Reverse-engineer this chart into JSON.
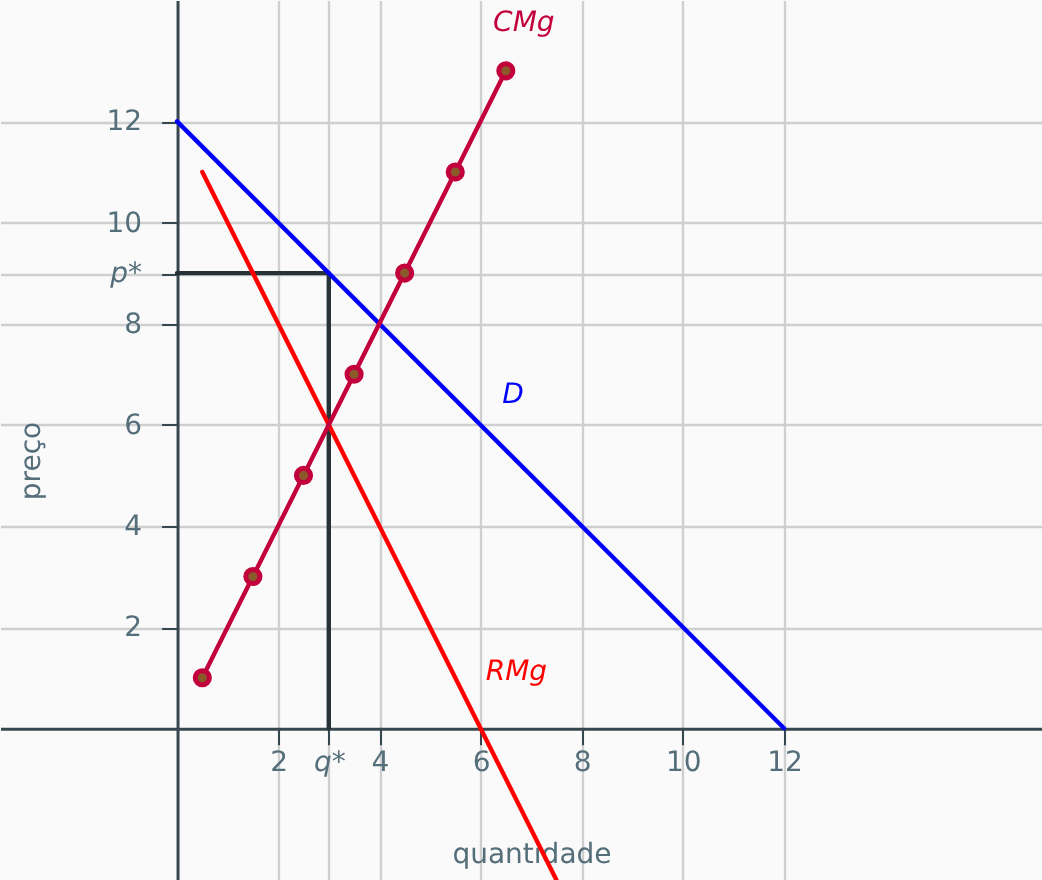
{
  "chart_data": {
    "type": "line",
    "xlabel": "quantidade",
    "ylabel": "preço",
    "xlim": [
      -3.5,
      17.1
    ],
    "ylim": [
      -3,
      14.4
    ],
    "xticks": [
      2,
      {
        "value": 3,
        "label": "q*"
      },
      4,
      6,
      8,
      10,
      12
    ],
    "yticks": [
      2,
      4,
      6,
      8,
      {
        "value": 9,
        "label": "p*"
      },
      10,
      12
    ],
    "grid": true,
    "line_style": "solid",
    "series": [
      {
        "color": "#263238",
        "x": [
          0,
          3,
          3
        ],
        "values": [
          9,
          9,
          0
        ],
        "marker": "none"
      },
      {
        "name": "D",
        "color": "#0000ff",
        "x": [
          0,
          12
        ],
        "values": [
          12,
          0
        ],
        "marker": "none"
      },
      {
        "name": "RMg",
        "color": "#ff0000",
        "x": [
          0.5,
          7.5
        ],
        "values": [
          11,
          -3
        ],
        "marker": "none"
      },
      {
        "name": "CMg",
        "color": "#c2003c",
        "x": [
          0.5,
          1.5,
          2.5,
          3.5,
          4.5,
          5.5,
          6.5
        ],
        "values": [
          1,
          3,
          5,
          7,
          9,
          11,
          13
        ],
        "marker": "circle"
      }
    ]
  }
}
